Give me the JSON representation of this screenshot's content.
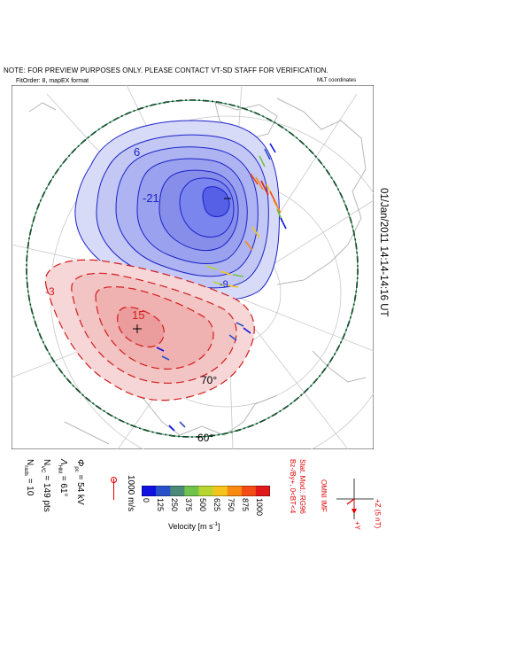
{
  "header": {
    "note": "NOTE: FOR PREVIEW PURPOSES ONLY. PLEASE CONTACT VT-SD STAFF FOR VERIFICATION.",
    "fit_info": "FitOrder: 8, mapEX format",
    "coordinate_system": "MLT coordinates"
  },
  "time_label": "01/Jan/2011 14:14-14:16 UT",
  "map": {
    "latitude_labels": [
      "70°",
      "60°"
    ],
    "contour_labels": [
      "6",
      "-21",
      "-9",
      "15",
      "-3"
    ],
    "colors": {
      "negative_fill": "#7b85ee",
      "positive_fill": "#f4b3b3",
      "negative_line": "#1a22c8",
      "positive_line": "#d41c1c",
      "boundary": "#0a7a3a"
    }
  },
  "color_scale": {
    "title": "Velocity [m s",
    "title_sup": "-1",
    "title_end": "]",
    "ticks": [
      "0",
      "125",
      "250",
      "375",
      "500",
      "625",
      "750",
      "875",
      "1000"
    ],
    "colors": [
      "#1010e0",
      "#2850c8",
      "#4a8878",
      "#6fc24a",
      "#b7d430",
      "#f2c41c",
      "#f88a10",
      "#f24c14",
      "#e01818"
    ]
  },
  "vector_reference": "1000 m/s",
  "stats": {
    "phi_pc": "= 54 kV",
    "lambda_hm": "= 61°",
    "n_vc": "= 149 pts",
    "n_rads": "= 10"
  },
  "imf_info": {
    "source": "OMNI IMF",
    "model": "Stat. Mod.: RG96",
    "conditions": "Bz-/By+, 0<BT<4",
    "axes": {
      "z": "+Z (5 nT)",
      "y": "+Y"
    }
  }
}
